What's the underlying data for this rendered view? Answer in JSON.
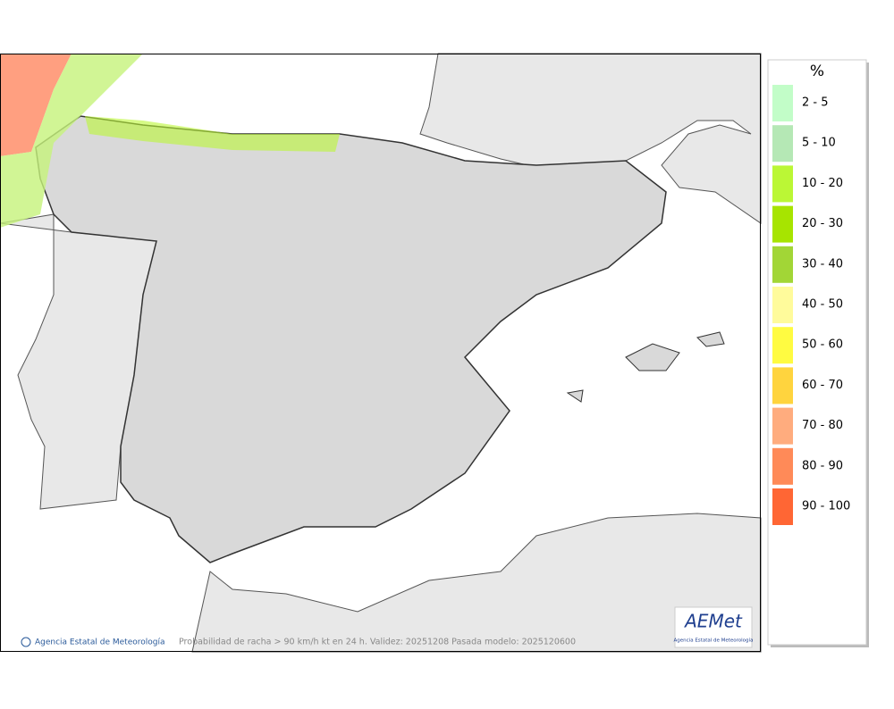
{
  "legend": {
    "unit": "%",
    "items": [
      {
        "label": "2 - 5",
        "color": "#c2fdc8"
      },
      {
        "label": "5 - 10",
        "color": "#b5e8b5"
      },
      {
        "label": "10 - 20",
        "color": "#bbf735"
      },
      {
        "label": "20 - 30",
        "color": "#a7e400"
      },
      {
        "label": "30 - 40",
        "color": "#a2d636"
      },
      {
        "label": "40 - 50",
        "color": "#fffb9b"
      },
      {
        "label": "50 - 60",
        "color": "#fffb41"
      },
      {
        "label": "60 - 70",
        "color": "#ffd43e"
      },
      {
        "label": "70 - 80",
        "color": "#ffac7e"
      },
      {
        "label": "80 - 90",
        "color": "#ff8a58"
      },
      {
        "label": "90 - 100",
        "color": "#ff6634"
      }
    ]
  },
  "footer": {
    "copyright": "Agencia Estatal de Meteorología",
    "caption": "Probabilidad de racha > 90 km/h kt en 24 h. Validez: 20251208 Pasada modelo: 2025120600"
  },
  "logo": {
    "text": "AEMet",
    "subtitle": "Agencia Estatal de Meteorología"
  }
}
